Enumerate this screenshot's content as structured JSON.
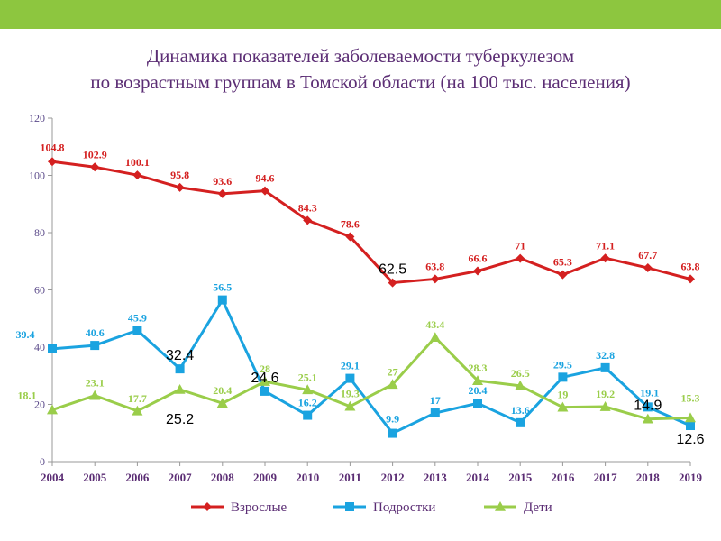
{
  "title": {
    "line1": "Динамика показателей заболеваемости туберкулезом",
    "line2": "по возрастным группам в Томской области (на 100 тыс. населения)"
  },
  "colors": {
    "top_bar": "#8dc63f",
    "title": "#5b2d74",
    "axis_text": "#5b4a8a"
  },
  "chart_data": {
    "type": "line",
    "title": "Динамика показателей заболеваемости туберкулезом по возрастным группам в Томской области (на 100 тыс. населения)",
    "categories": [
      "2004",
      "2005",
      "2006",
      "2007",
      "2008",
      "2009",
      "2010",
      "2011",
      "2012",
      "2013",
      "2014",
      "2015",
      "2016",
      "2017",
      "2018",
      "2019"
    ],
    "ylim": [
      0,
      120
    ],
    "yticks": [
      0,
      20,
      40,
      60,
      80,
      100,
      120
    ],
    "grid": false,
    "legend_position": "bottom",
    "series": [
      {
        "name": "Взрослые",
        "color": "#d42020",
        "marker": "diamond",
        "values": [
          104.8,
          102.9,
          100.1,
          95.8,
          93.6,
          94.6,
          84.3,
          78.6,
          62.5,
          63.8,
          66.6,
          71,
          65.3,
          71.1,
          67.7,
          63.8
        ],
        "labels": [
          "104.8",
          "102.9",
          "100.1",
          "95.8",
          "93.6",
          "94.6",
          "84.3",
          "78.6",
          "62.5",
          "63.8",
          "66.6",
          "71",
          "65.3",
          "71.1",
          "67.7",
          "63.8"
        ]
      },
      {
        "name": "Подростки",
        "color": "#1aa3e0",
        "marker": "square",
        "values": [
          39.4,
          40.6,
          45.9,
          32.4,
          56.5,
          24.6,
          16.2,
          29.1,
          9.9,
          17,
          20.4,
          13.6,
          29.5,
          32.8,
          19.1,
          12.6
        ],
        "labels": [
          "39.4",
          "40.6",
          "45.9",
          "32.4",
          "56.5",
          "24.6",
          "16.2",
          "29.1",
          "9.9",
          "17",
          "20.4",
          "13.6",
          "29.5",
          "32.8",
          "19.1",
          "12.6"
        ]
      },
      {
        "name": "Дети",
        "color": "#9acd4a",
        "marker": "triangle",
        "values": [
          18.1,
          23.1,
          17.7,
          25.2,
          20.4,
          28,
          25.1,
          19.3,
          27,
          43.4,
          28.3,
          26.5,
          19,
          19.2,
          14.9,
          15.3
        ],
        "labels": [
          "18.1",
          "23.1",
          "17.7",
          "25.2",
          "20.4",
          "28",
          "25.1",
          "19.3",
          "27",
          "43.4",
          "28.3",
          "26.5",
          "19",
          "19.2",
          "14.9",
          "15.3"
        ]
      }
    ]
  }
}
